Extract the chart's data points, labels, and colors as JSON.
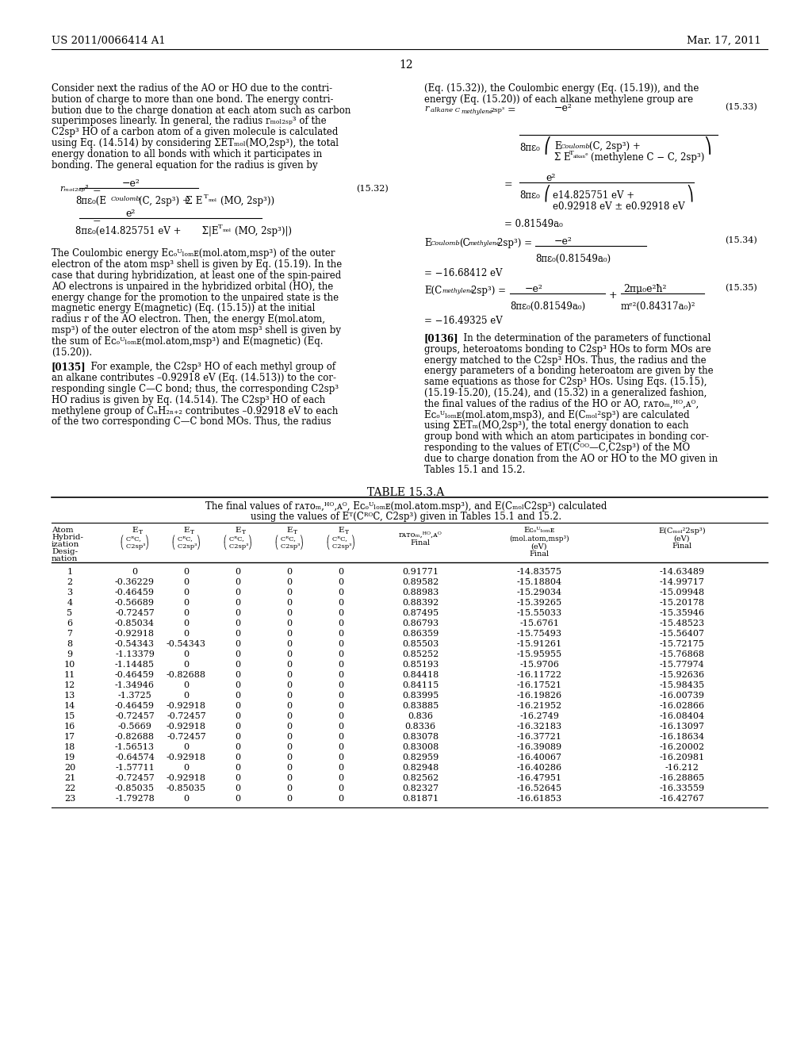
{
  "page_num": "12",
  "header_left": "US 2011/0066414 A1",
  "header_right": "Mar. 17, 2011",
  "bg_color": "#ffffff",
  "left_col_lines_p1": [
    "Consider next the radius of the AO or HO due to the contri-",
    "bution of charge to more than one bond. The energy contri-",
    "bution due to the charge donation at each atom such as carbon",
    "superimposes linearly. In general, the radius rₘₒₗ₂ₛₚ³ of the",
    "C2sp³ HO of a carbon atom of a given molecule is calculated",
    "using Eq. (14.514) by considering ΣETₘₒₗ(MO,2sp³), the total",
    "energy donation to all bonds with which it participates in",
    "bonding. The general equation for the radius is given by"
  ],
  "right_col_lines_p1": [
    "(Eq. (15.32)), the Coulombic energy (Eq. (15.19)), and the",
    "energy (Eq. (15.20)) of each alkane methylene group are"
  ],
  "left_col_lines_p2": [
    "The Coulombic energy Eᴄₒᵁₗₒₘᴇ(mol.atom,msp³) of the outer",
    "electron of the atom msp³ shell is given by Eq. (15.19). In the",
    "case that during hybridization, at least one of the spin-paired",
    "AO electrons is unpaired in the hybridized orbital (HO), the",
    "energy change for the promotion to the unpaired state is the",
    "magnetic energy E(magnetic) (Eq. (15.15)) at the initial",
    "radius r of the AO electron. Then, the energy E(mol.atom,",
    "msp³) of the outer electron of the atom msp³ shell is given by",
    "the sum of Eᴄₒᵁₗₒₘᴇ(mol.atom,msp³) and E(magnetic) (Eq.",
    "(15.20))."
  ],
  "left_col_lines_p3": [
    "       For example, the C2sp³ HO of each methyl group of",
    "an alkane contributes –0.92918 eV (Eq. (14.513)) to the cor-",
    "responding single C—C bond; thus, the corresponding C2sp³",
    "HO radius is given by Eq. (14.514). The C2sp³ HO of each",
    "methylene group of CₙH₂ₙ₊₂ contributes –0.92918 eV to each",
    "of the two corresponding C—C bond MOs. Thus, the radius"
  ],
  "right_col_lines_p2": [
    "       In the determination of the parameters of functional",
    "groups, heteroatoms bonding to C2sp³ HOs to form MOs are",
    "energy matched to the C2sp³ HOs. Thus, the radius and the",
    "energy parameters of a bonding heteroatom are given by the",
    "same equations as those for C2sp³ HOs. Using Eqs. (15.15),",
    "(15.19-15.20), (15.24), and (15.32) in a generalized fashion,",
    "the final values of the radius of the HO or AO, rᴀᴛᴏₘ,ᴴᴼ,ᴀᴼ,",
    "Eᴄₒᵁₗₒₘᴇ(mol.atom,msp3), and E(Cₘₒₗ²sp³) are calculated",
    "using ΣETₘ(MO,2sp³), the total energy donation to each",
    "group bond with which an atom participates in bonding cor-",
    "responding to the values of ET(Cᴼᴼ—C,C2sp³) of the MO",
    "due to charge donation from the AO or HO to the MO given in",
    "Tables 15.1 and 15.2."
  ],
  "table_data": [
    [
      "1",
      "0",
      "0",
      "0",
      "0",
      "0",
      "0.91771",
      "-14.83575",
      "-14.63489"
    ],
    [
      "2",
      "-0.36229",
      "0",
      "0",
      "0",
      "0",
      "0.89582",
      "-15.18804",
      "-14.99717"
    ],
    [
      "3",
      "-0.46459",
      "0",
      "0",
      "0",
      "0",
      "0.88983",
      "-15.29034",
      "-15.09948"
    ],
    [
      "4",
      "-0.56689",
      "0",
      "0",
      "0",
      "0",
      "0.88392",
      "-15.39265",
      "-15.20178"
    ],
    [
      "5",
      "-0.72457",
      "0",
      "0",
      "0",
      "0",
      "0.87495",
      "-15.55033",
      "-15.35946"
    ],
    [
      "6",
      "-0.85034",
      "0",
      "0",
      "0",
      "0",
      "0.86793",
      "-15.6761",
      "-15.48523"
    ],
    [
      "7",
      "-0.92918",
      "0",
      "0",
      "0",
      "0",
      "0.86359",
      "-15.75493",
      "-15.56407"
    ],
    [
      "8",
      "-0.54343",
      "-0.54343",
      "0",
      "0",
      "0",
      "0.85503",
      "-15.91261",
      "-15.72175"
    ],
    [
      "9",
      "-1.13379",
      "0",
      "0",
      "0",
      "0",
      "0.85252",
      "-15.95955",
      "-15.76868"
    ],
    [
      "10",
      "-1.14485",
      "0",
      "0",
      "0",
      "0",
      "0.85193",
      "-15.9706",
      "-15.77974"
    ],
    [
      "11",
      "-0.46459",
      "-0.82688",
      "0",
      "0",
      "0",
      "0.84418",
      "-16.11722",
      "-15.92636"
    ],
    [
      "12",
      "-1.34946",
      "0",
      "0",
      "0",
      "0",
      "0.84115",
      "-16.17521",
      "-15.98435"
    ],
    [
      "13",
      "-1.3725",
      "0",
      "0",
      "0",
      "0",
      "0.83995",
      "-16.19826",
      "-16.00739"
    ],
    [
      "14",
      "-0.46459",
      "-0.92918",
      "0",
      "0",
      "0",
      "0.83885",
      "-16.21952",
      "-16.02866"
    ],
    [
      "15",
      "-0.72457",
      "-0.72457",
      "0",
      "0",
      "0",
      "0.836",
      "-16.2749",
      "-16.08404"
    ],
    [
      "16",
      "-0.5669",
      "-0.92918",
      "0",
      "0",
      "0",
      "0.8336",
      "-16.32183",
      "-16.13097"
    ],
    [
      "17",
      "-0.82688",
      "-0.72457",
      "0",
      "0",
      "0",
      "0.83078",
      "-16.37721",
      "-16.18634"
    ],
    [
      "18",
      "-1.56513",
      "0",
      "0",
      "0",
      "0",
      "0.83008",
      "-16.39089",
      "-16.20002"
    ],
    [
      "19",
      "-0.64574",
      "-0.92918",
      "0",
      "0",
      "0",
      "0.82959",
      "-16.40067",
      "-16.20981"
    ],
    [
      "20",
      "-1.57711",
      "0",
      "0",
      "0",
      "0",
      "0.82948",
      "-16.40286",
      "-16.212"
    ],
    [
      "21",
      "-0.72457",
      "-0.92918",
      "0",
      "0",
      "0",
      "0.82562",
      "-16.47951",
      "-16.28865"
    ],
    [
      "22",
      "-0.85035",
      "-0.85035",
      "0",
      "0",
      "0",
      "0.82327",
      "-16.52645",
      "-16.33559"
    ],
    [
      "23",
      "-1.79278",
      "0",
      "0",
      "0",
      "0",
      "0.81871",
      "-16.61853",
      "-16.42767"
    ]
  ]
}
